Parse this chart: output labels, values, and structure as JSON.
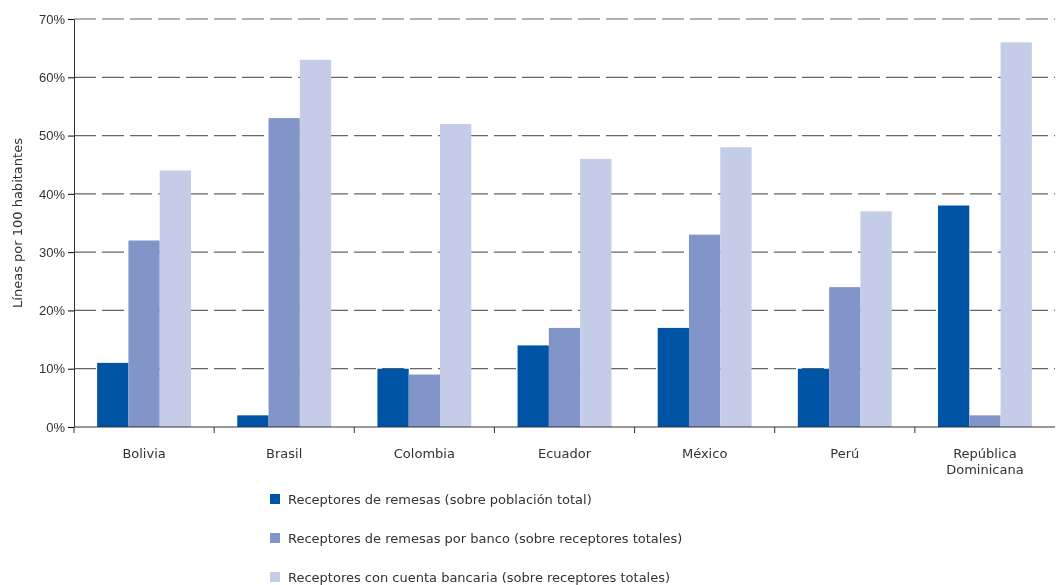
{
  "chart_data": {
    "type": "bar",
    "ylabel": "Líneas por 100 habitantes",
    "categories": [
      "Bolivia",
      "Brasil",
      "Colombia",
      "Ecuador",
      "México",
      "Perú",
      "República Dominicana"
    ],
    "series": [
      {
        "name": "Receptores de remesas (sobre población total)",
        "color": "#0054a6",
        "values": [
          11,
          2,
          10,
          14,
          17,
          10,
          38
        ]
      },
      {
        "name": "Receptores de remesas por banco (sobre receptores totales)",
        "color": "#8295c9",
        "values": [
          32,
          53,
          9,
          17,
          33,
          24,
          2
        ]
      },
      {
        "name": "Receptores con cuenta bancaria (sobre receptores totales)",
        "color": "#c5cce7",
        "values": [
          44,
          63,
          52,
          46,
          48,
          37,
          66
        ]
      }
    ],
    "ylim": [
      0,
      70
    ],
    "yticks": [
      {
        "value": 0,
        "label": "0%"
      },
      {
        "value": 10,
        "label": "10%"
      },
      {
        "value": 20,
        "label": "20%"
      },
      {
        "value": 30,
        "label": "30%"
      },
      {
        "value": 40,
        "label": "40%"
      },
      {
        "value": 50,
        "label": "50%"
      },
      {
        "value": 60,
        "label": "60%"
      },
      {
        "value": 70,
        "label": "70%"
      }
    ],
    "grid": "y",
    "legend": "bottom"
  }
}
